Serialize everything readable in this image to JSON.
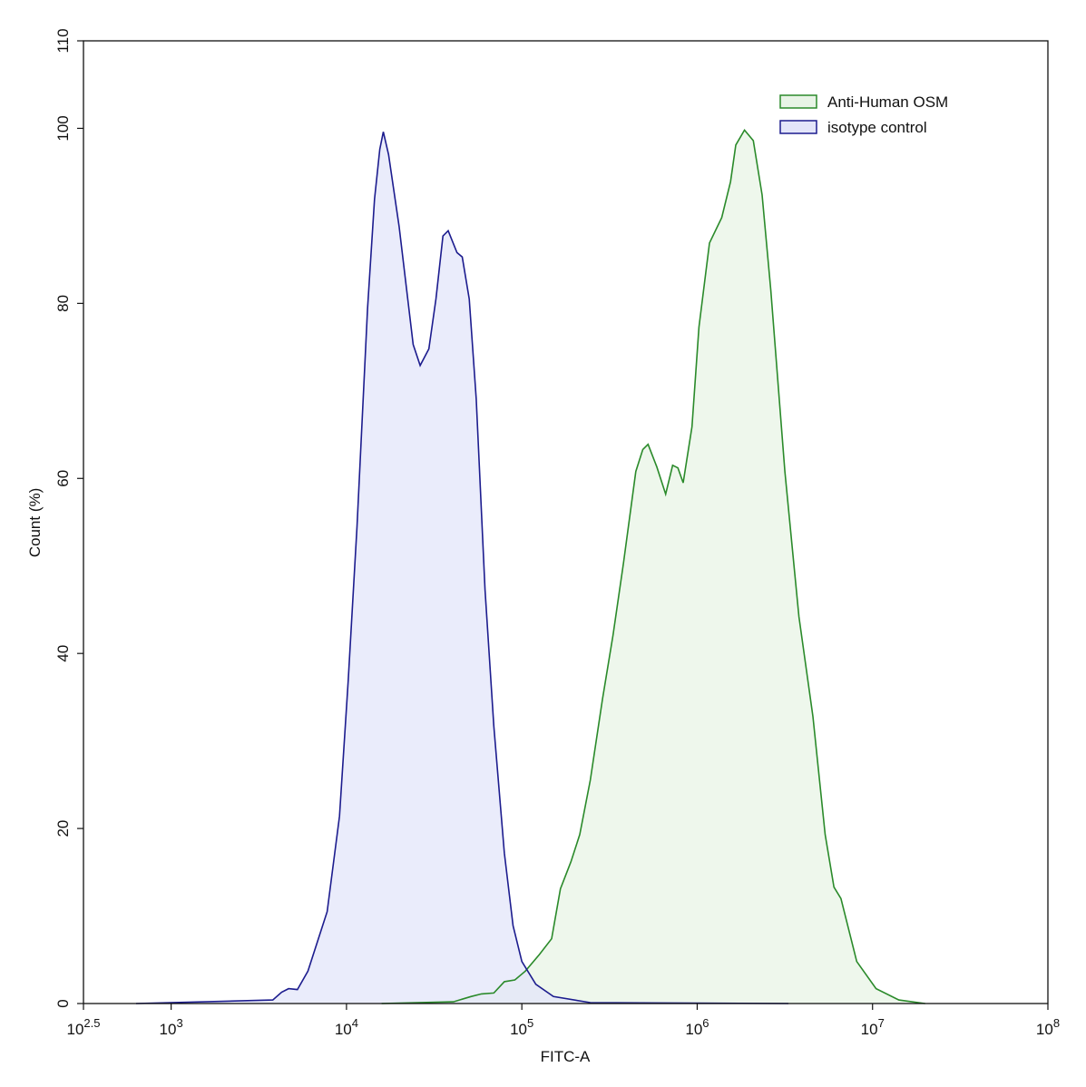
{
  "chart_data": {
    "type": "histogram",
    "x_label": "FITC-A",
    "y_label": "Count  (%)",
    "log_x": true,
    "xlim": [
      316.23,
      100000000
    ],
    "xticks": [
      {
        "value": 316.23,
        "label": "10",
        "exponent": "2.5"
      },
      {
        "value": 1000,
        "label": "10",
        "exponent": "3"
      },
      {
        "value": 10000,
        "label": "10",
        "exponent": "4"
      },
      {
        "value": 100000,
        "label": "10",
        "exponent": "5"
      },
      {
        "value": 1000000,
        "label": "10",
        "exponent": "6"
      },
      {
        "value": 10000000,
        "label": "10",
        "exponent": "7"
      },
      {
        "value": 100000000,
        "label": "10",
        "exponent": "8"
      }
    ],
    "ylim": [
      0,
      110
    ],
    "yticks": [
      0,
      20,
      40,
      60,
      80,
      100,
      110
    ],
    "legend": "top-right",
    "series": [
      {
        "name": "Anti-Human OSM",
        "color": "#2a8a2a",
        "fill": "#e8f4e6",
        "x": [
          15849,
          40738,
          51286,
          58884,
          69183,
          79433,
          91201,
          104713,
          125893,
          147911,
          165959,
          190546,
          213796,
          245471,
          288403,
          331131,
          380189,
          446684,
          489779,
          524807,
          588844,
          660693,
          724436,
          776247,
          831764,
          933254,
          1023293,
          1174898,
          1380384,
          1548817,
          1659587,
          1862087,
          2089296,
          2344229,
          2630268,
          3162278,
          3801894,
          4570882,
          5370318,
          6025596,
          6606934,
          8128305,
          10471285,
          14125375,
          19952623
        ],
        "values": [
          0,
          0.2,
          0.8,
          1.1,
          1.2,
          2.5,
          2.7,
          3.7,
          5.6,
          7.4,
          13.1,
          16.2,
          19.3,
          25.5,
          34.8,
          42.1,
          50.4,
          60.8,
          63.3,
          63.9,
          61.3,
          58.2,
          61.5,
          61.2,
          59.5,
          65.9,
          77.3,
          86.9,
          89.8,
          93.9,
          98.1,
          99.8,
          98.6,
          92.4,
          81.5,
          60.8,
          44.2,
          32.8,
          19.3,
          13.3,
          12.0,
          4.8,
          1.7,
          0.4,
          0
        ]
      },
      {
        "name": "isotype control",
        "color": "#1c1c8e",
        "fill": "#e3e5f9",
        "x": [
          631,
          3802,
          4266,
          4677,
          5248,
          6026,
          7762,
          9120,
          10233,
          11482,
          13183,
          14454,
          15488,
          16218,
          17378,
          19953,
          23988,
          26303,
          29512,
          32359,
          35481,
          38019,
          42658,
          45709,
          50119,
          54954,
          61660,
          69183,
          79433,
          89125,
          100000,
          120226,
          151356,
          245471,
          3311311
        ],
        "values": [
          0,
          0.4,
          1.3,
          1.7,
          1.6,
          3.7,
          10.5,
          21.4,
          36.9,
          54.5,
          79.4,
          91.9,
          97.6,
          99.6,
          97.0,
          88.8,
          75.3,
          72.9,
          74.8,
          80.5,
          87.7,
          88.3,
          85.8,
          85.3,
          80.5,
          69.1,
          47.3,
          31.7,
          17.2,
          8.9,
          4.8,
          2.2,
          0.8,
          0.1,
          0
        ]
      }
    ]
  }
}
